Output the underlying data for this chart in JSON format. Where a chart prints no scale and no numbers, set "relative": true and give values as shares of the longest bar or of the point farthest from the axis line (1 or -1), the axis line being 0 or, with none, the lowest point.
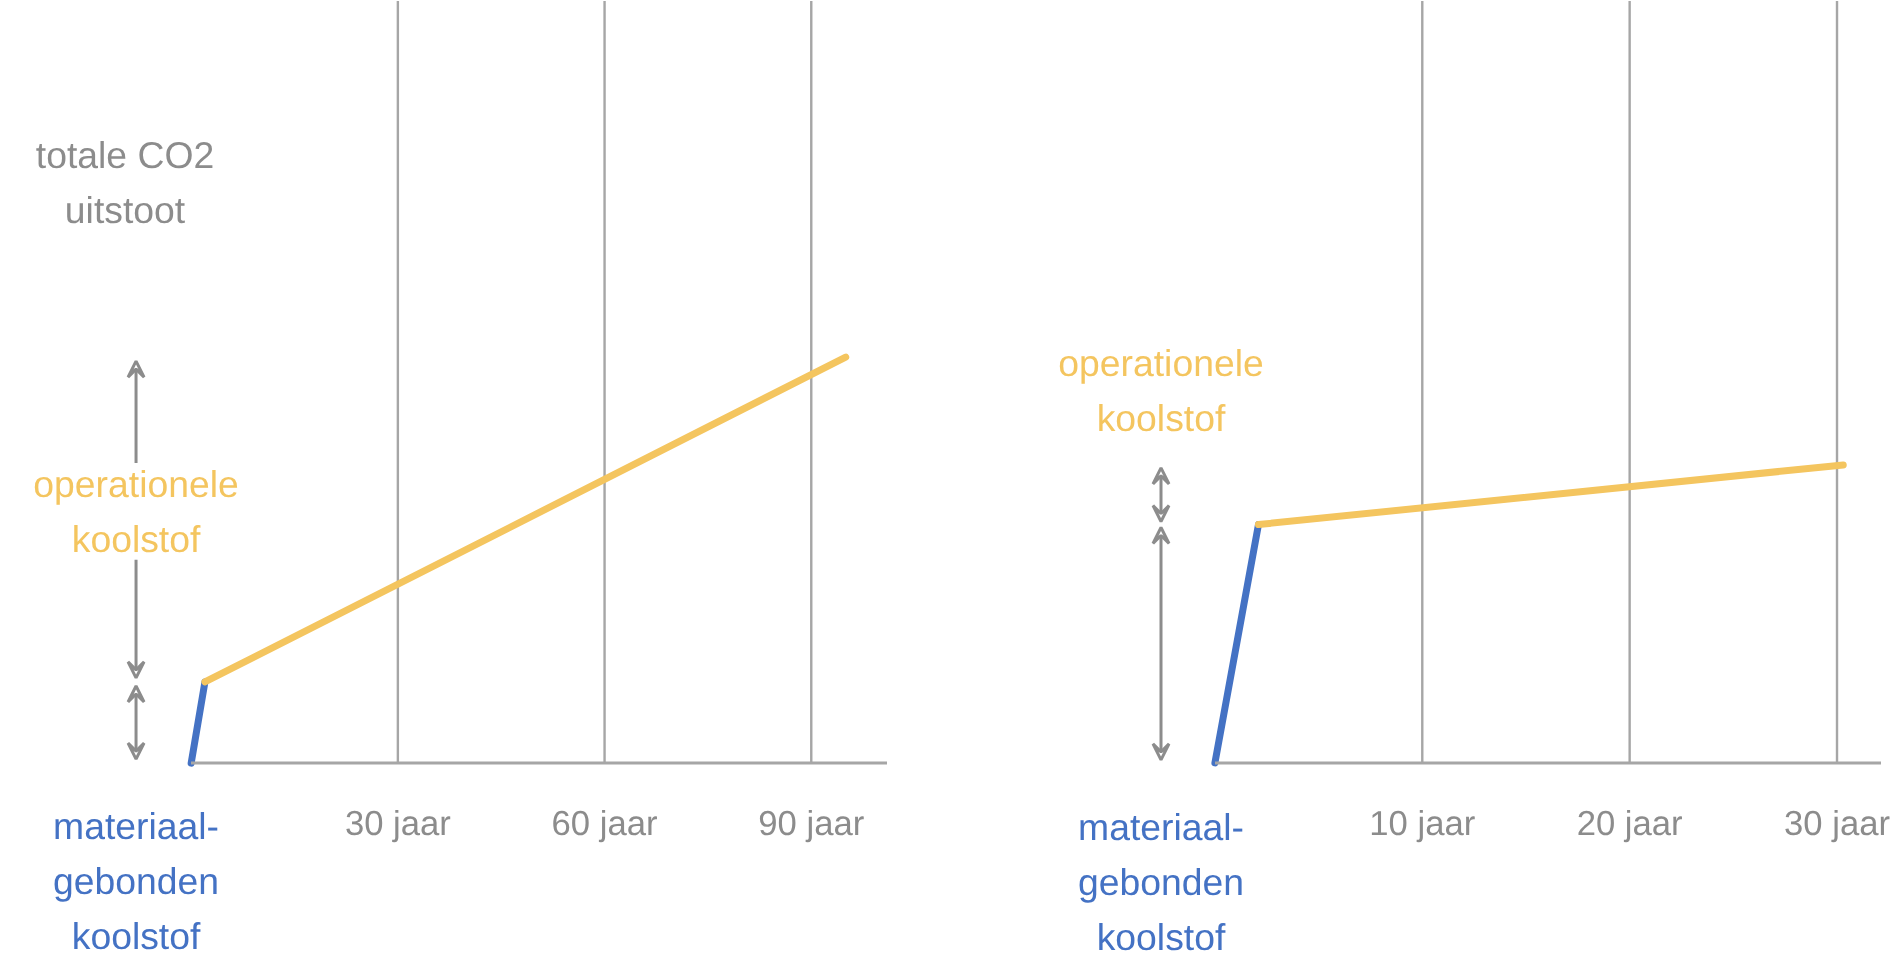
{
  "chart_data": [
    {
      "type": "line",
      "relative": true,
      "xlim": [
        0,
        101
      ],
      "xticks": [
        {
          "value": 30,
          "label": "30 jaar"
        },
        {
          "value": 60,
          "label": "60 jaar"
        },
        {
          "value": 90,
          "label": "90 jaar"
        }
      ],
      "grid": "x",
      "legend": false,
      "annotations": [
        "totale CO2 uitstoot"
      ],
      "series": [
        {
          "name": "materiaal-gebonden koolstof",
          "color": "#4472c4",
          "x": [
            0,
            2
          ],
          "values": [
            0,
            0.2
          ]
        },
        {
          "name": "operationele koolstof",
          "color": "#f4c55f",
          "x": [
            2,
            95
          ],
          "values": [
            0.2,
            1
          ]
        }
      ]
    },
    {
      "type": "line",
      "relative": true,
      "xlim": [
        0,
        32.1
      ],
      "xticks": [
        {
          "value": 10,
          "label": "10 jaar"
        },
        {
          "value": 20,
          "label": "20 jaar"
        },
        {
          "value": 30,
          "label": "30 jaar"
        }
      ],
      "grid": "x",
      "legend": false,
      "series": [
        {
          "name": "materiaal-gebonden koolstof",
          "color": "#4472c4",
          "x": [
            0,
            2.1
          ],
          "values": [
            0,
            0.8
          ]
        },
        {
          "name": "operationele koolstof",
          "color": "#f4c55f",
          "x": [
            2.1,
            30.3
          ],
          "values": [
            0.8,
            1
          ]
        }
      ]
    }
  ]
}
